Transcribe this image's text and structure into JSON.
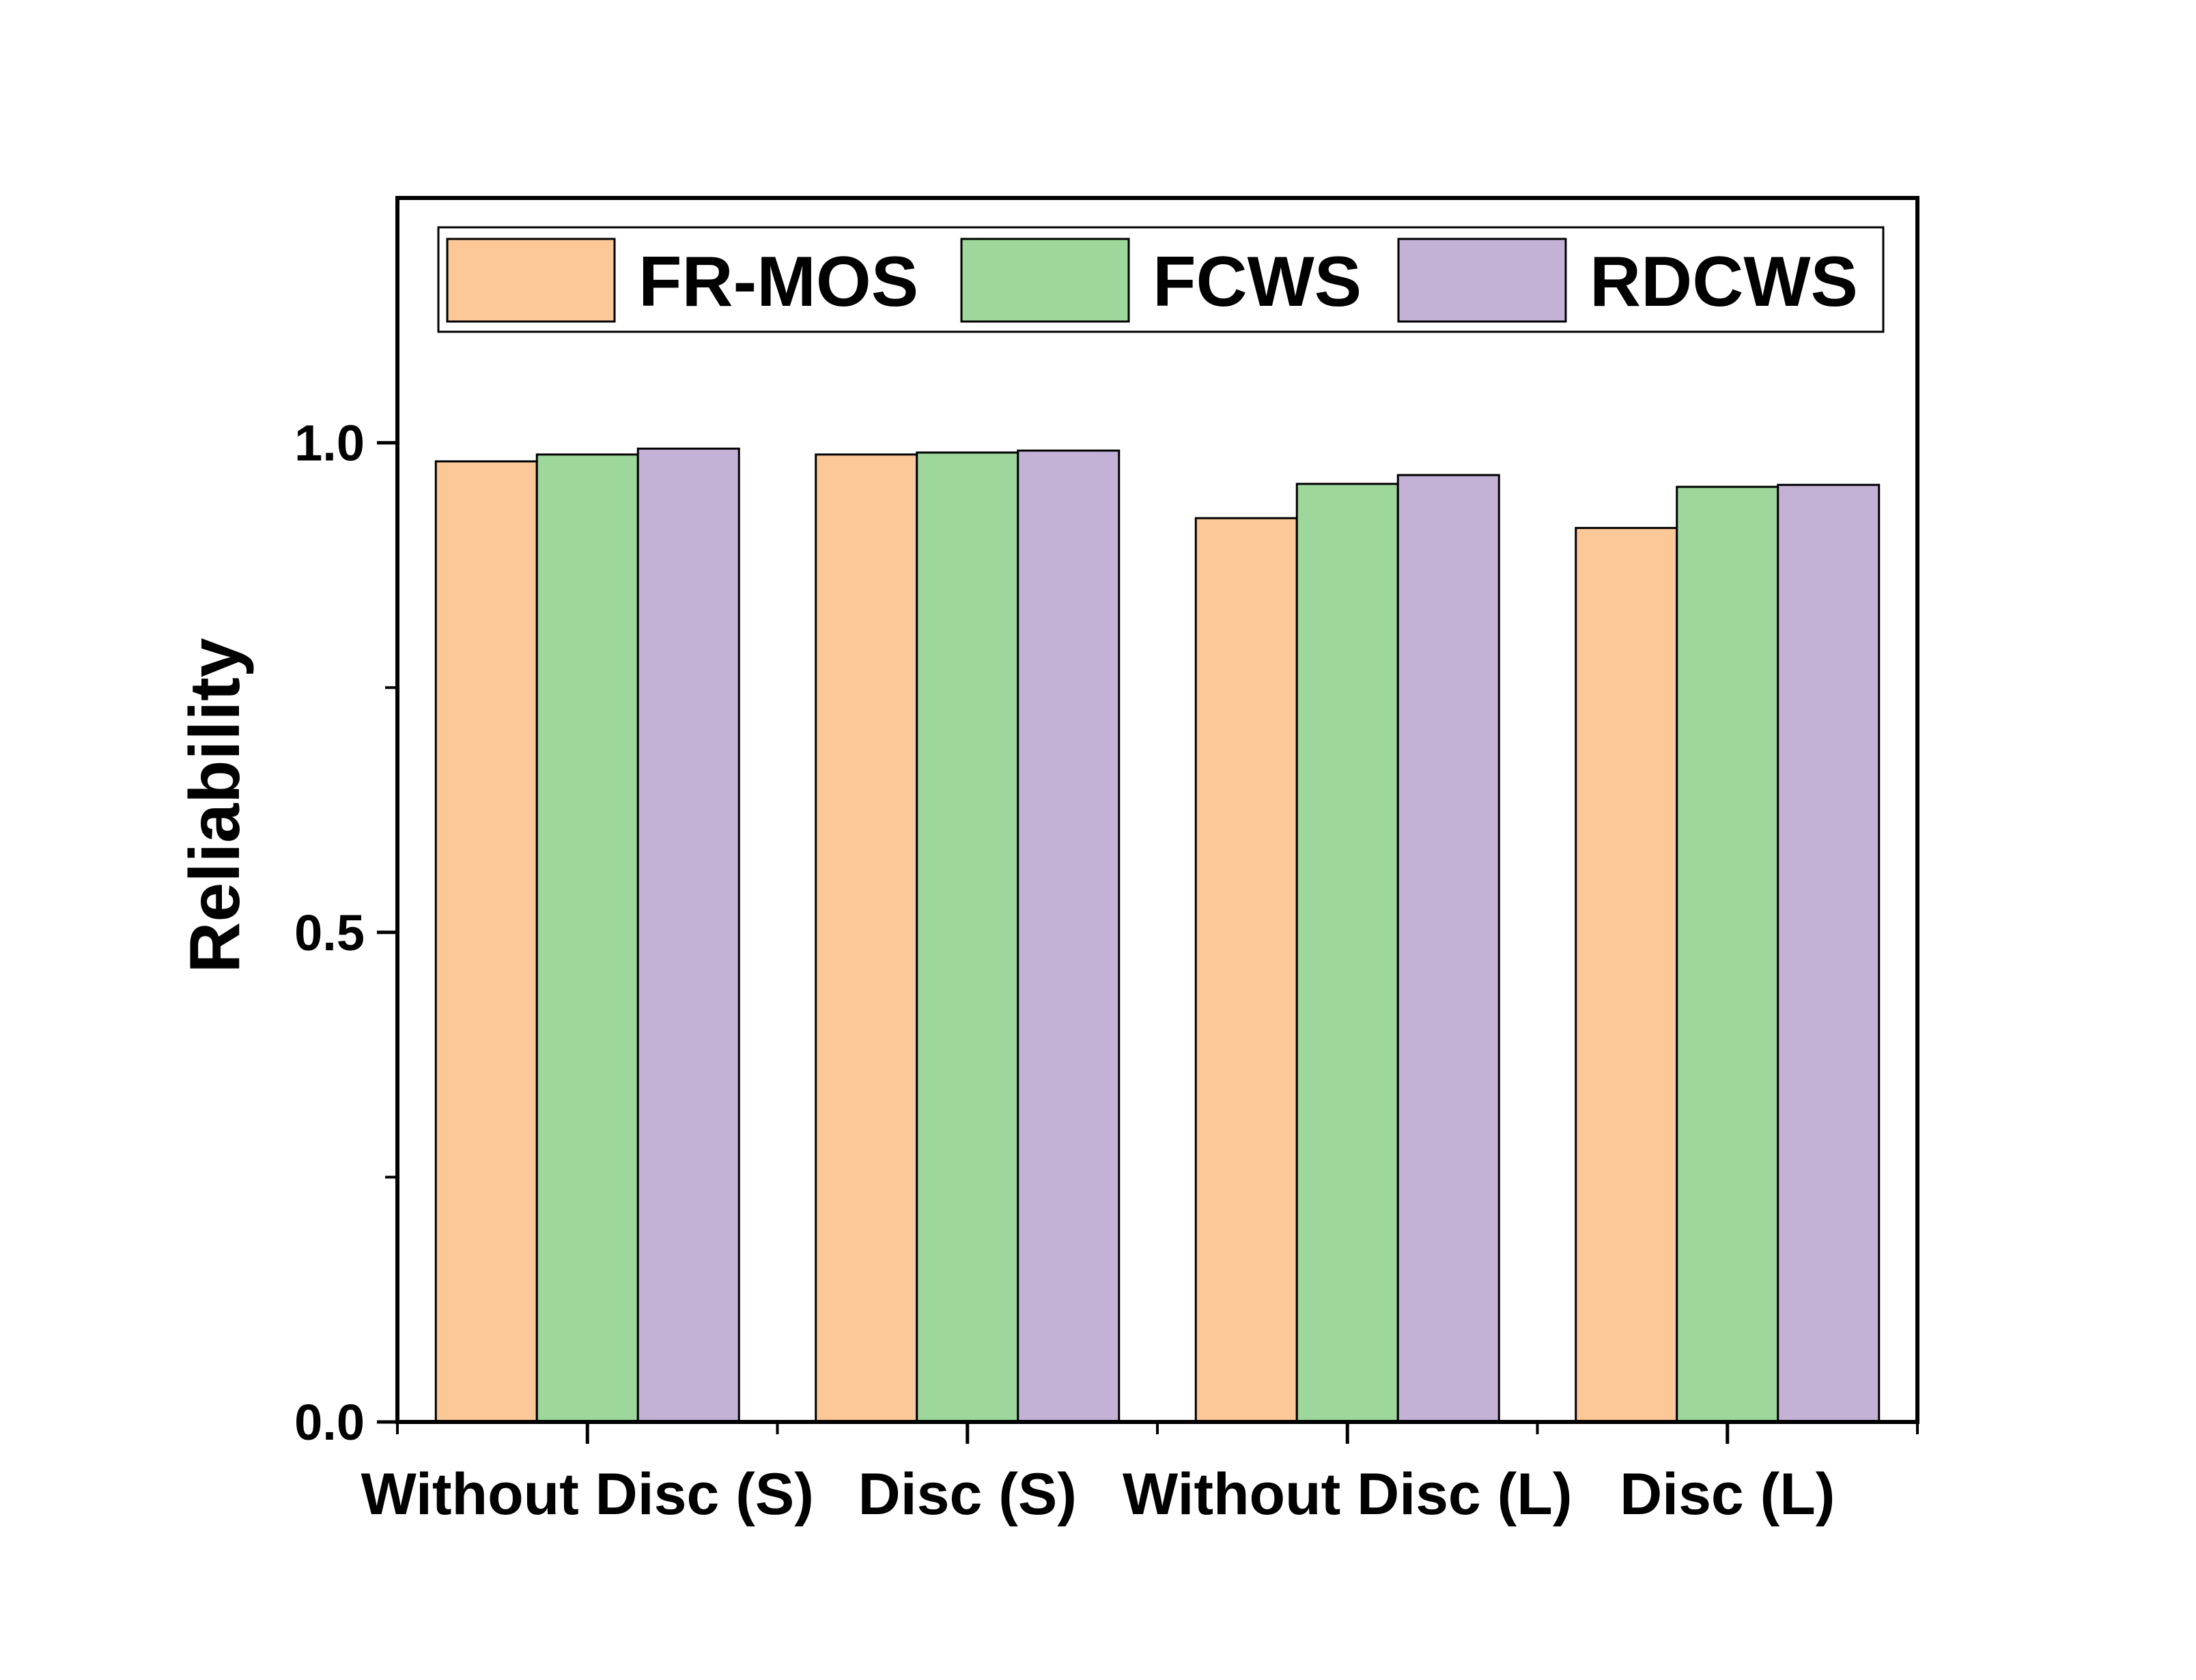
{
  "chart_data": {
    "type": "bar",
    "title": "",
    "xlabel": "",
    "ylabel": "Reliability",
    "ylim": [
      0,
      1.25
    ],
    "yticks": [
      0.0,
      0.5,
      1.0
    ],
    "ytick_labels": [
      "0.0",
      "0.5",
      "1.0"
    ],
    "grid": false,
    "legend_position": "top",
    "categories": [
      "Without Disc (S)",
      "Disc (S)",
      "Without Disc (L)",
      "Disc (L)"
    ],
    "series": [
      {
        "name": "FR-MOS",
        "color": "#FCC897",
        "values": [
          0.981,
          0.988,
          0.923,
          0.913
        ]
      },
      {
        "name": "FCWS",
        "color": "#9DD79B",
        "values": [
          0.988,
          0.99,
          0.958,
          0.955
        ]
      },
      {
        "name": "RDCWS",
        "color": "#C3B1D6",
        "values": [
          0.994,
          0.992,
          0.967,
          0.957
        ]
      }
    ]
  }
}
